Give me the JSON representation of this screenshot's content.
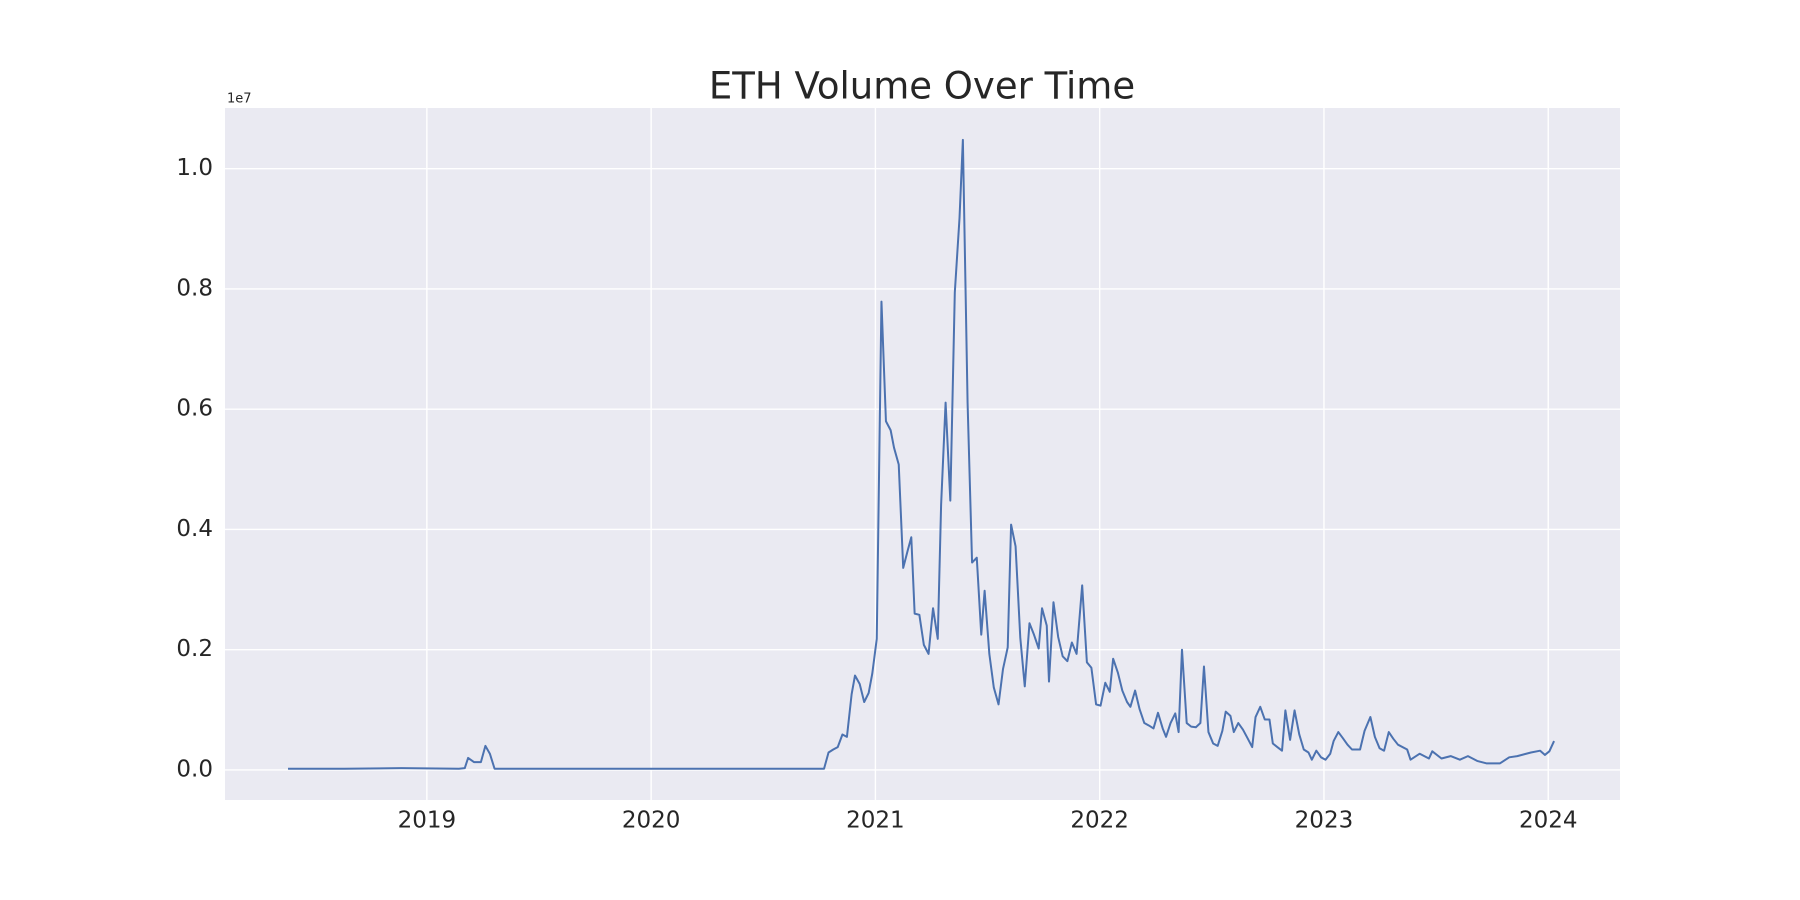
{
  "chart_data": {
    "type": "line",
    "title": "ETH Volume Over Time",
    "y_offset_text": "1e7",
    "color": "#4c72b0",
    "grid": true,
    "x": [
      2018.381,
      2018.632,
      2018.887,
      2019.143,
      2019.169,
      2019.184,
      2019.21,
      2019.241,
      2019.261,
      2019.281,
      2019.302,
      2019.655,
      2020.167,
      2020.679,
      2020.771,
      2020.791,
      2020.812,
      2020.832,
      2020.853,
      2020.873,
      2020.894,
      2020.909,
      2020.93,
      2020.95,
      2020.97,
      2020.986,
      2021.006,
      2021.027,
      2021.047,
      2021.068,
      2021.083,
      2021.104,
      2021.124,
      2021.144,
      2021.16,
      2021.175,
      2021.196,
      2021.216,
      2021.237,
      2021.257,
      2021.278,
      2021.293,
      2021.313,
      2021.334,
      2021.354,
      2021.375,
      2021.39,
      2021.411,
      2021.431,
      2021.452,
      2021.472,
      2021.487,
      2021.508,
      2021.528,
      2021.549,
      2021.569,
      2021.59,
      2021.605,
      2021.625,
      2021.646,
      2021.666,
      2021.687,
      2021.707,
      2021.728,
      2021.743,
      2021.764,
      2021.774,
      2021.794,
      2021.815,
      2021.835,
      2021.856,
      2021.876,
      2021.897,
      2021.922,
      2021.943,
      2021.963,
      2021.984,
      2022.004,
      2022.025,
      2022.045,
      2022.06,
      2022.081,
      2022.101,
      2022.122,
      2022.137,
      2022.158,
      2022.178,
      2022.199,
      2022.219,
      2022.24,
      2022.26,
      2022.281,
      2022.296,
      2022.316,
      2022.337,
      2022.352,
      2022.367,
      2022.388,
      2022.408,
      2022.429,
      2022.449,
      2022.465,
      2022.485,
      2022.506,
      2022.526,
      2022.547,
      2022.562,
      2022.583,
      2022.598,
      2022.618,
      2022.639,
      2022.659,
      2022.68,
      2022.695,
      2022.716,
      2022.736,
      2022.757,
      2022.772,
      2022.792,
      2022.813,
      2022.828,
      2022.849,
      2022.869,
      2022.89,
      2022.91,
      2022.931,
      2022.946,
      2022.966,
      2022.987,
      2023.007,
      2023.028,
      2023.043,
      2023.064,
      2023.084,
      2023.105,
      2023.125,
      2023.161,
      2023.181,
      2023.207,
      2023.227,
      2023.248,
      2023.268,
      2023.289,
      2023.309,
      2023.33,
      2023.371,
      2023.386,
      2023.427,
      2023.468,
      2023.483,
      2023.524,
      2023.565,
      2023.606,
      2023.642,
      2023.683,
      2023.724,
      2023.785,
      2023.826,
      2023.862,
      2023.923,
      2023.964,
      2023.985,
      2024.005,
      2024.026
    ],
    "values": [
      0.002,
      0.002,
      0.003,
      0.002,
      0.003,
      0.02,
      0.013,
      0.013,
      0.04,
      0.027,
      0.002,
      0.002,
      0.002,
      0.002,
      0.002,
      0.029,
      0.034,
      0.038,
      0.059,
      0.055,
      0.126,
      0.157,
      0.143,
      0.113,
      0.128,
      0.16,
      0.218,
      0.779,
      0.58,
      0.565,
      0.536,
      0.508,
      0.336,
      0.365,
      0.387,
      0.26,
      0.258,
      0.208,
      0.193,
      0.269,
      0.218,
      0.441,
      0.611,
      0.448,
      0.794,
      0.918,
      1.048,
      0.611,
      0.345,
      0.353,
      0.225,
      0.298,
      0.193,
      0.137,
      0.109,
      0.168,
      0.204,
      0.408,
      0.372,
      0.22,
      0.139,
      0.244,
      0.225,
      0.202,
      0.269,
      0.24,
      0.147,
      0.279,
      0.221,
      0.189,
      0.181,
      0.212,
      0.193,
      0.307,
      0.179,
      0.17,
      0.109,
      0.107,
      0.145,
      0.13,
      0.185,
      0.162,
      0.132,
      0.113,
      0.105,
      0.132,
      0.101,
      0.078,
      0.074,
      0.069,
      0.095,
      0.069,
      0.055,
      0.078,
      0.094,
      0.063,
      0.2,
      0.078,
      0.072,
      0.071,
      0.078,
      0.172,
      0.063,
      0.044,
      0.04,
      0.065,
      0.097,
      0.09,
      0.063,
      0.078,
      0.067,
      0.053,
      0.038,
      0.088,
      0.105,
      0.084,
      0.084,
      0.044,
      0.038,
      0.032,
      0.099,
      0.05,
      0.099,
      0.059,
      0.034,
      0.029,
      0.017,
      0.032,
      0.021,
      0.017,
      0.027,
      0.048,
      0.063,
      0.053,
      0.042,
      0.034,
      0.034,
      0.065,
      0.088,
      0.055,
      0.036,
      0.032,
      0.063,
      0.052,
      0.042,
      0.034,
      0.017,
      0.027,
      0.019,
      0.031,
      0.019,
      0.023,
      0.017,
      0.023,
      0.015,
      0.011,
      0.011,
      0.021,
      0.023,
      0.029,
      0.032,
      0.025,
      0.031,
      0.048
    ],
    "xlim": [
      2018.1,
      2024.32
    ],
    "xticks": [
      2019,
      2020,
      2021,
      2022,
      2023,
      2024
    ],
    "ylim": [
      -0.05,
      1.101
    ],
    "yticks": [
      {
        "value": 0,
        "label": "0.0"
      },
      {
        "value": 0.2,
        "label": "0.2"
      },
      {
        "value": 0.4,
        "label": "0.4"
      },
      {
        "value": 0.6,
        "label": "0.6"
      },
      {
        "value": 0.8,
        "label": "0.8"
      },
      {
        "value": 1,
        "label": "1.0"
      }
    ]
  }
}
